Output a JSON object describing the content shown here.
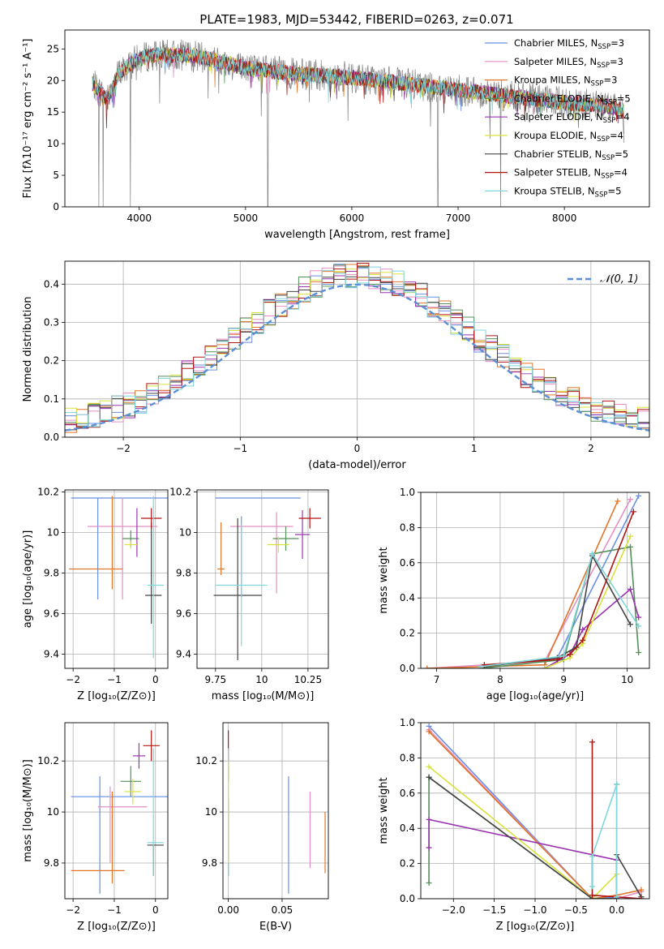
{
  "figure": {
    "title": "PLATE=1983, MJD=53442, FIBERID=0263, z=0.071"
  },
  "models": [
    {
      "name": "Chabrier MILES",
      "nssp": "3",
      "color": "#6a8fe3"
    },
    {
      "name": "Salpeter MILES",
      "nssp": "3",
      "color": "#e58fc4"
    },
    {
      "name": "Kroupa MILES",
      "nssp": "3",
      "color": "#e0762a"
    },
    {
      "name": "Chabrier ELODIE",
      "nssp": "5",
      "color": "#55905a"
    },
    {
      "name": "Salpeter ELODIE",
      "nssp": "4",
      "color": "#9a35b0"
    },
    {
      "name": "Kroupa ELODIE",
      "nssp": "4",
      "color": "#d8e23a"
    },
    {
      "name": "Chabrier STELIB",
      "nssp": "5",
      "color": "#444444"
    },
    {
      "name": "Salpeter STELIB",
      "nssp": "4",
      "color": "#b01515"
    },
    {
      "name": "Kroupa STELIB",
      "nssp": "5",
      "color": "#7fd6dc"
    }
  ],
  "chart_data": [
    {
      "id": "spectrum",
      "type": "line",
      "xlabel": "wavelength [Angstrom, rest frame]",
      "ylabel": "Flux [fλ10⁻¹⁷ erg cm⁻² s⁻¹ A⁻¹]",
      "xlim": [
        3300,
        8800
      ],
      "ylim": [
        0,
        28
      ],
      "xticks": [
        4000,
        5000,
        6000,
        7000,
        8000
      ],
      "yticks": [
        0,
        5,
        10,
        15,
        20,
        25
      ],
      "grid": false,
      "legend": "top-right",
      "data_color": "#808080",
      "continuum": [
        [
          3560,
          19.5
        ],
        [
          3700,
          17
        ],
        [
          3800,
          21
        ],
        [
          3950,
          23
        ],
        [
          4100,
          24
        ],
        [
          4500,
          24
        ],
        [
          5000,
          22
        ],
        [
          5500,
          21
        ],
        [
          6000,
          20.5
        ],
        [
          6500,
          19.5
        ],
        [
          7000,
          18.5
        ],
        [
          7500,
          17.5
        ],
        [
          8000,
          16.5
        ],
        [
          8400,
          16
        ],
        [
          8560,
          15.2
        ]
      ],
      "deep_absorption": [
        [
          3620,
          0
        ],
        [
          3660,
          0
        ],
        [
          3915,
          0
        ],
        [
          5210,
          0
        ],
        [
          6810,
          0
        ],
        [
          7400,
          0
        ]
      ]
    },
    {
      "id": "residuals",
      "type": "line",
      "xlabel": "(data-model)/error",
      "ylabel": "Normed distribution",
      "xlim": [
        -2.5,
        2.5
      ],
      "ylim": [
        0,
        0.46
      ],
      "xticks": [
        -2,
        -1,
        0,
        1,
        2
      ],
      "yticks": [
        0.0,
        0.1,
        0.2,
        0.3,
        0.4
      ],
      "grid": true,
      "legend": "top-right",
      "reference": {
        "label": "𝒩(0, 1)",
        "mean": 0,
        "sigma": 1,
        "color": "#5b8fd6"
      },
      "bin_width": 0.1
    },
    {
      "id": "age-vs-Z",
      "type": "scatter",
      "xlabel": "Z [log₁₀(Z/Z⊙)]",
      "ylabel": "age  [log₁₀(age/yr)]",
      "xlim": [
        -2.2,
        0.3
      ],
      "ylim": [
        9.33,
        10.21
      ],
      "xticks": [
        -2,
        -1,
        0
      ],
      "yticks": [
        9.4,
        9.6,
        9.8,
        10.0,
        10.2
      ],
      "grid": true,
      "points": [
        {
          "x": -0.5,
          "xerr": 1.55,
          "y": 10.17,
          "yerr": 0.0,
          "color": "#6a8fe3"
        },
        {
          "x": -1.4,
          "xerr": 0.0,
          "y": 9.92,
          "yerr": 0.25,
          "color": "#6a8fe3"
        },
        {
          "x": -0.8,
          "xerr": 0.85,
          "y": 10.03,
          "yerr": 0.0,
          "color": "#e58fc4"
        },
        {
          "x": -0.8,
          "xerr": 0.0,
          "y": 9.92,
          "yerr": 0.25,
          "color": "#e58fc4"
        },
        {
          "x": -1.45,
          "xerr": 0.65,
          "y": 9.82,
          "yerr": 0.0,
          "color": "#e0762a"
        },
        {
          "x": -1.05,
          "xerr": 0.0,
          "y": 9.95,
          "yerr": 0.23,
          "color": "#e0762a"
        },
        {
          "x": -0.6,
          "xerr": 0.2,
          "y": 9.97,
          "yerr": 0.04,
          "color": "#55905a"
        },
        {
          "x": -0.45,
          "xerr": 0.0,
          "y": 10.0,
          "yerr": 0.12,
          "color": "#9a35b0"
        },
        {
          "x": -0.6,
          "xerr": 0.15,
          "y": 9.94,
          "yerr": 0.02,
          "color": "#d8e23a"
        },
        {
          "x": -0.05,
          "xerr": 0.2,
          "y": 9.69,
          "yerr": 0.0,
          "color": "#444444"
        },
        {
          "x": -0.1,
          "xerr": 0.0,
          "y": 9.8,
          "yerr": 0.25,
          "color": "#444444"
        },
        {
          "x": -0.1,
          "xerr": 0.25,
          "y": 10.07,
          "yerr": 0.05,
          "color": "#b01515"
        },
        {
          "x": 0.0,
          "xerr": 0.2,
          "y": 9.74,
          "yerr": 0.0,
          "color": "#7fd6dc"
        },
        {
          "x": -0.05,
          "xerr": 0.0,
          "y": 9.78,
          "yerr": 0.4,
          "color": "#7fd6dc"
        }
      ]
    },
    {
      "id": "age-vs-mass",
      "type": "scatter",
      "xlabel": "mass [log₁₀(M/M⊙)]",
      "ylabel": "",
      "xlim": [
        9.65,
        10.36
      ],
      "ylim": [
        9.33,
        10.21
      ],
      "xticks": [
        9.75,
        10.0,
        10.25
      ],
      "yticks": [
        9.4,
        9.6,
        9.8,
        10.0,
        10.2
      ],
      "grid": true,
      "points": [
        {
          "x": 9.98,
          "xerr": 0.23,
          "y": 10.17,
          "yerr": 0.0,
          "color": "#6a8fe3"
        },
        {
          "x": 9.89,
          "xerr": 0.0,
          "y": 9.88,
          "yerr": 0.2,
          "color": "#6a8fe3"
        },
        {
          "x": 10.0,
          "xerr": 0.17,
          "y": 10.03,
          "yerr": 0.0,
          "color": "#e58fc4"
        },
        {
          "x": 10.08,
          "xerr": 0.0,
          "y": 9.9,
          "yerr": 0.2,
          "color": "#e58fc4"
        },
        {
          "x": 9.78,
          "xerr": 0.0,
          "y": 9.92,
          "yerr": 0.13,
          "color": "#e0762a"
        },
        {
          "x": 9.78,
          "xerr": 0.02,
          "y": 9.82,
          "yerr": 0.0,
          "color": "#e0762a"
        },
        {
          "x": 10.13,
          "xerr": 0.07,
          "y": 9.97,
          "yerr": 0.06,
          "color": "#55905a"
        },
        {
          "x": 10.22,
          "xerr": 0.04,
          "y": 9.99,
          "yerr": 0.12,
          "color": "#9a35b0"
        },
        {
          "x": 10.09,
          "xerr": 0.06,
          "y": 9.94,
          "yerr": 0.04,
          "color": "#d8e23a"
        },
        {
          "x": 9.87,
          "xerr": 0.13,
          "y": 9.69,
          "yerr": 0.0,
          "color": "#444444"
        },
        {
          "x": 9.87,
          "xerr": 0.0,
          "y": 9.72,
          "yerr": 0.35,
          "color": "#444444"
        },
        {
          "x": 10.26,
          "xerr": 0.06,
          "y": 10.07,
          "yerr": 0.05,
          "color": "#b01515"
        },
        {
          "x": 9.89,
          "xerr": 0.14,
          "y": 9.74,
          "yerr": 0.0,
          "color": "#7fd6dc"
        },
        {
          "x": 9.89,
          "xerr": 0.0,
          "y": 9.74,
          "yerr": 0.3,
          "color": "#7fd6dc"
        }
      ]
    },
    {
      "id": "weight-vs-age",
      "type": "line",
      "xlabel": "age  [log₁₀(age/yr)]",
      "ylabel": "mass weight",
      "xlim": [
        6.75,
        10.35
      ],
      "ylim": [
        0,
        1.0
      ],
      "xticks": [
        7,
        8,
        9,
        10
      ],
      "yticks": [
        0.0,
        0.2,
        0.4,
        0.6,
        0.8,
        1.0
      ],
      "grid": true,
      "series": [
        {
          "color": "#6a8fe3",
          "x": [
            7.7,
            8.9,
            10.18
          ],
          "y": [
            0.01,
            0.06,
            0.98
          ]
        },
        {
          "color": "#e58fc4",
          "x": [
            6.85,
            8.7,
            10.05
          ],
          "y": [
            0.0,
            0.04,
            0.96
          ]
        },
        {
          "color": "#e0762a",
          "x": [
            6.85,
            8.7,
            9.85
          ],
          "y": [
            0.0,
            0.02,
            0.95
          ]
        },
        {
          "color": "#55905a",
          "x": [
            7.7,
            9.0,
            9.45,
            10.05,
            10.18
          ],
          "y": [
            0.0,
            0.05,
            0.65,
            0.69,
            0.09
          ]
        },
        {
          "color": "#9a35b0",
          "x": [
            8.7,
            9.1,
            9.3,
            10.05,
            10.18
          ],
          "y": [
            0.0,
            0.08,
            0.22,
            0.45,
            0.29
          ]
        },
        {
          "color": "#d8e23a",
          "x": [
            8.7,
            9.1,
            9.3,
            10.05
          ],
          "y": [
            0.0,
            0.06,
            0.14,
            0.75
          ]
        },
        {
          "color": "#444444",
          "x": [
            7.75,
            8.9,
            9.2,
            9.45,
            10.05
          ],
          "y": [
            0.01,
            0.06,
            0.12,
            0.64,
            0.25
          ]
        },
        {
          "color": "#b01515",
          "x": [
            7.75,
            8.9,
            9.1,
            9.3,
            10.1
          ],
          "y": [
            0.02,
            0.05,
            0.08,
            0.16,
            0.89
          ]
        },
        {
          "color": "#7fd6dc",
          "x": [
            7.7,
            9.0,
            9.45,
            10.18
          ],
          "y": [
            0.01,
            0.07,
            0.65,
            0.24
          ]
        }
      ]
    },
    {
      "id": "mass-vs-Z",
      "type": "scatter",
      "xlabel": "Z [log₁₀(Z/Z⊙)]",
      "ylabel": "mass [log₁₀(M/M⊙)]",
      "xlim": [
        -2.2,
        0.3
      ],
      "ylim": [
        9.66,
        10.35
      ],
      "xticks": [
        -2,
        -1,
        0
      ],
      "yticks": [
        9.8,
        10.0,
        10.2
      ],
      "grid": true,
      "points": [
        {
          "x": -0.75,
          "xerr": 1.3,
          "y": 10.06,
          "yerr": 0.0,
          "color": "#6a8fe3"
        },
        {
          "x": -1.35,
          "xerr": 0.0,
          "y": 9.91,
          "yerr": 0.23,
          "color": "#6a8fe3"
        },
        {
          "x": -0.8,
          "xerr": 0.6,
          "y": 10.02,
          "yerr": 0.0,
          "color": "#e58fc4"
        },
        {
          "x": -1.1,
          "xerr": 0.0,
          "y": 9.95,
          "yerr": 0.15,
          "color": "#e58fc4"
        },
        {
          "x": -1.4,
          "xerr": 0.65,
          "y": 9.77,
          "yerr": 0.0,
          "color": "#e0762a"
        },
        {
          "x": -1.05,
          "xerr": 0.0,
          "y": 9.9,
          "yerr": 0.18,
          "color": "#e0762a"
        },
        {
          "x": -0.6,
          "xerr": 0.25,
          "y": 10.12,
          "yerr": 0.06,
          "color": "#55905a"
        },
        {
          "x": -0.4,
          "xerr": 0.15,
          "y": 10.22,
          "yerr": 0.05,
          "color": "#9a35b0"
        },
        {
          "x": -0.55,
          "xerr": 0.2,
          "y": 10.08,
          "yerr": 0.05,
          "color": "#d8e23a"
        },
        {
          "x": 0.0,
          "xerr": 0.2,
          "y": 9.87,
          "yerr": 0.0,
          "color": "#444444"
        },
        {
          "x": -0.05,
          "xerr": 0.0,
          "y": 9.81,
          "yerr": 0.06,
          "color": "#444444"
        },
        {
          "x": -0.1,
          "xerr": 0.2,
          "y": 10.26,
          "yerr": 0.06,
          "color": "#b01515"
        },
        {
          "x": 0.0,
          "xerr": 0.2,
          "y": 9.88,
          "yerr": 0.0,
          "color": "#7fd6dc"
        },
        {
          "x": -0.05,
          "xerr": 0.0,
          "y": 10.0,
          "yerr": 0.25,
          "color": "#7fd6dc"
        }
      ]
    },
    {
      "id": "mass-vs-EBV",
      "type": "scatter",
      "xlabel": "E(B-V)",
      "ylabel": "",
      "xlim": [
        -0.005,
        0.093
      ],
      "ylim": [
        9.66,
        10.35
      ],
      "xticks": [
        0.0,
        0.05
      ],
      "xtick_labels": [
        "0.00",
        "0.05"
      ],
      "yticks": [
        9.8,
        10.0,
        10.2
      ],
      "grid": true,
      "points": [
        {
          "x": 0.0,
          "xerr": 0.0,
          "y": 10.22,
          "yerr": 0.1,
          "color": "#b01515"
        },
        {
          "x": 0.0,
          "xerr": 0.0,
          "y": 9.9,
          "yerr": 0.15,
          "color": "#444444"
        },
        {
          "x": 0.0,
          "xerr": 0.0,
          "y": 10.0,
          "yerr": 0.25,
          "color": "#7fd6dc"
        },
        {
          "x": 0.0,
          "xerr": 0.0,
          "y": 10.0,
          "yerr": 0.2,
          "color": "#d8e23a"
        },
        {
          "x": 0.056,
          "xerr": 0.0,
          "y": 9.91,
          "yerr": 0.23,
          "color": "#6a8fe3"
        },
        {
          "x": 0.076,
          "xerr": 0.0,
          "y": 9.93,
          "yerr": 0.15,
          "color": "#e58fc4"
        },
        {
          "x": 0.09,
          "xerr": 0.0,
          "y": 9.88,
          "yerr": 0.12,
          "color": "#e0762a"
        }
      ]
    },
    {
      "id": "weight-vs-Z",
      "type": "line",
      "xlabel": "Z [log₁₀(Z/Z⊙)]",
      "ylabel": "mass weight",
      "xlim": [
        -2.4,
        0.4
      ],
      "ylim": [
        0,
        1.0
      ],
      "xticks": [
        -2.0,
        -1.5,
        -1.0,
        -0.5,
        0.0
      ],
      "xtick_labels": [
        "−2.0",
        "−1.5",
        "−1.0",
        "−0.5",
        "0.0"
      ],
      "yticks": [
        0.0,
        0.2,
        0.4,
        0.6,
        0.8,
        1.0
      ],
      "grid": true,
      "series": [
        {
          "color": "#6a8fe3",
          "x": [
            -2.3,
            -0.3,
            0.0,
            0.3
          ],
          "y": [
            0.98,
            0.0,
            0.01,
            0.0
          ]
        },
        {
          "color": "#e58fc4",
          "x": [
            -2.3,
            -0.3,
            0.0,
            0.3
          ],
          "y": [
            0.96,
            0.0,
            0.0,
            0.04
          ]
        },
        {
          "color": "#e0762a",
          "x": [
            -2.3,
            -0.3,
            0.0,
            0.3
          ],
          "y": [
            0.95,
            0.0,
            0.02,
            0.05
          ]
        },
        {
          "color": "#55905a",
          "x": [
            -2.3,
            -2.3,
            -0.3,
            0.0,
            0.0
          ],
          "y": [
            0.09,
            0.69,
            0.0,
            0.0,
            0.65
          ]
        },
        {
          "color": "#9a35b0",
          "x": [
            -2.3,
            -2.3,
            0.0,
            0.0
          ],
          "y": [
            0.29,
            0.45,
            0.22,
            0.0
          ]
        },
        {
          "color": "#d8e23a",
          "x": [
            -2.3,
            -0.3,
            0.0
          ],
          "y": [
            0.75,
            0.0,
            0.14
          ]
        },
        {
          "color": "#444444",
          "x": [
            -2.3,
            -0.3,
            0.0,
            0.0,
            0.3
          ],
          "y": [
            0.69,
            0.0,
            0.0,
            0.25,
            0.01
          ]
        },
        {
          "color": "#b01515",
          "x": [
            -0.3,
            -0.3,
            0.0,
            0.3
          ],
          "y": [
            0.89,
            0.02,
            0.01,
            0.0
          ]
        },
        {
          "color": "#7fd6dc",
          "x": [
            -0.3,
            -0.3,
            0.0,
            0.0
          ],
          "y": [
            0.07,
            0.24,
            0.65,
            0.01
          ]
        }
      ]
    }
  ]
}
